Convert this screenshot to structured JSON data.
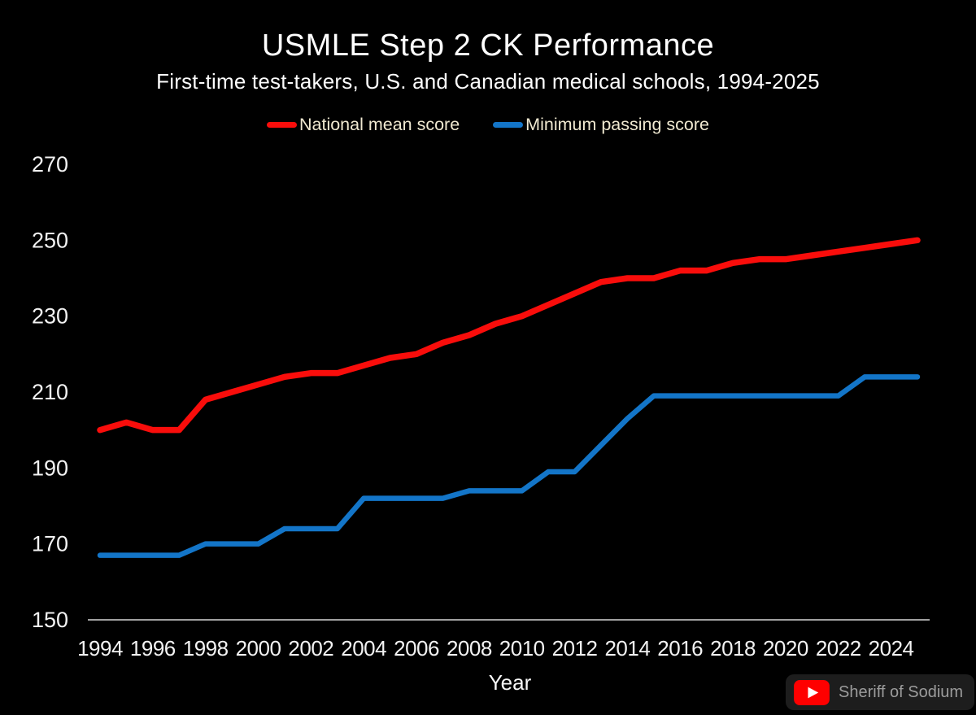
{
  "chart_data": {
    "type": "line",
    "title": "USMLE Step 2 CK Performance",
    "subtitle": "First-time test-takers, U.S. and Canadian medical schools, 1994-2025",
    "xlabel": "Year",
    "grid": false,
    "legend_position": "top-center",
    "x_range": [
      1994,
      2025
    ],
    "y_range": [
      150,
      270
    ],
    "y_ticks": [
      270,
      250,
      230,
      210,
      190,
      170,
      150
    ],
    "x_ticks": [
      1994,
      1996,
      1998,
      2000,
      2002,
      2004,
      2006,
      2008,
      2010,
      2012,
      2014,
      2016,
      2018,
      2020,
      2022,
      2024
    ],
    "x": [
      1994,
      1995,
      1996,
      1997,
      1998,
      1999,
      2000,
      2001,
      2002,
      2003,
      2004,
      2005,
      2006,
      2007,
      2008,
      2009,
      2010,
      2011,
      2012,
      2013,
      2014,
      2015,
      2016,
      2017,
      2018,
      2019,
      2020,
      2021,
      2022,
      2023,
      2024,
      2025
    ],
    "series": [
      {
        "id": "national-mean-score",
        "name": "National mean score",
        "color": "#f90d0b",
        "values": [
          200,
          202,
          200,
          200,
          208,
          210,
          212,
          214,
          215,
          215,
          217,
          219,
          220,
          223,
          225,
          228,
          230,
          233,
          236,
          239,
          240,
          240,
          242,
          242,
          244,
          245,
          245,
          246,
          247,
          248,
          249,
          250
        ]
      },
      {
        "id": "minimum-passing-score",
        "name": "Minimum passing score",
        "color": "#1375c8",
        "values": [
          167,
          167,
          167,
          167,
          170,
          170,
          170,
          174,
          174,
          174,
          182,
          182,
          182,
          182,
          184,
          184,
          184,
          189,
          189,
          196,
          203,
          209,
          209,
          209,
          209,
          209,
          209,
          209,
          209,
          214,
          214,
          214
        ]
      }
    ]
  },
  "colors": {
    "background": "#000000",
    "title_text": "#ffffff",
    "subtitle_text": "#fcfcfc",
    "legend_text": "#f0e9d1",
    "tick_label": "#f2f2f2",
    "axis_line": "#d6d6d6",
    "watermark_bg": "#1d1d1d",
    "watermark_text": "#9c9c9c",
    "youtube_red": "#ff0000"
  },
  "watermark": {
    "text": "Sheriff of Sodium",
    "icon": "youtube-play-icon"
  }
}
